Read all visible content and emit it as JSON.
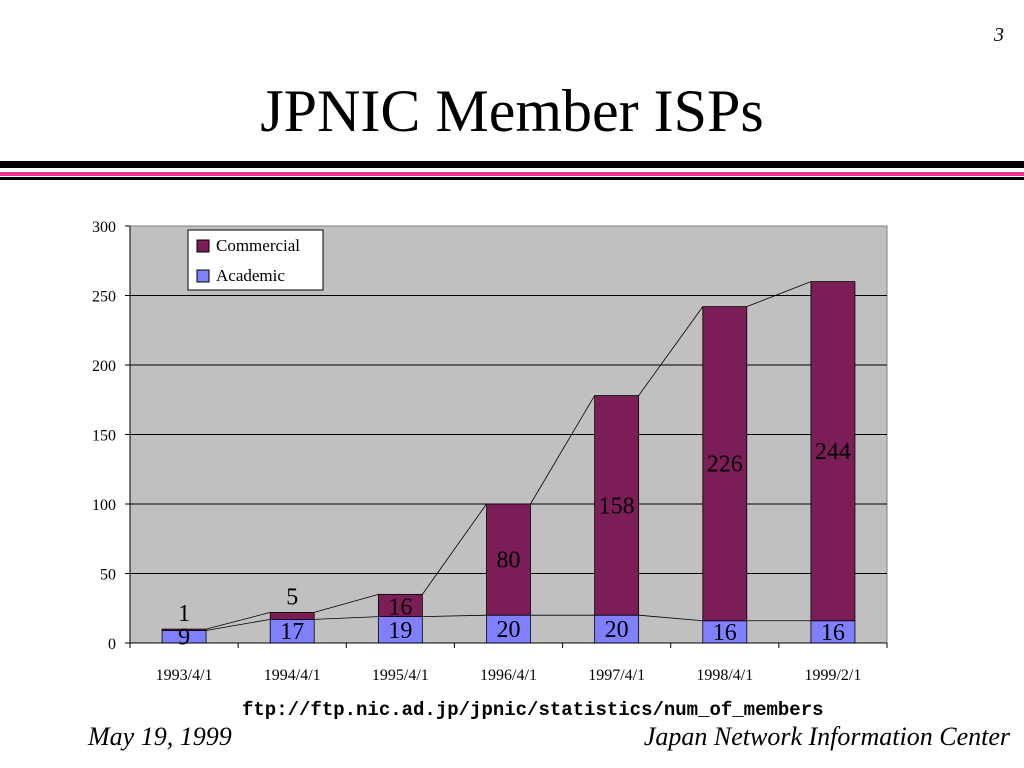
{
  "slide": {
    "page_number": "3",
    "title": "JPNIC Member ISPs",
    "source": "ftp://ftp.nic.ad.jp/jpnic/statistics/num_of_members",
    "date": "May 19, 1999",
    "organization": "Japan Network Information Center"
  },
  "colors": {
    "commercial": "#7b1d57",
    "academic": "#8080ff",
    "plot_bg": "#c0c0c0",
    "rule_dark": "#000000",
    "rule_accent": "#e8338f"
  },
  "chart_data": {
    "type": "bar",
    "stacked": true,
    "categories": [
      "1993/4/1",
      "1994/4/1",
      "1995/4/1",
      "1996/4/1",
      "1997/4/1",
      "1998/4/1",
      "1999/2/1"
    ],
    "series": [
      {
        "name": "Academic",
        "values": [
          9,
          17,
          19,
          20,
          20,
          16,
          16
        ]
      },
      {
        "name": "Commercial",
        "values": [
          1,
          5,
          16,
          80,
          158,
          226,
          244
        ]
      }
    ],
    "ylim": [
      0,
      300
    ],
    "yticks": [
      0,
      50,
      100,
      150,
      200,
      250,
      300
    ],
    "grid": true,
    "legend": "top-left",
    "series_lines": true,
    "title": "",
    "xlabel": "",
    "ylabel": ""
  }
}
